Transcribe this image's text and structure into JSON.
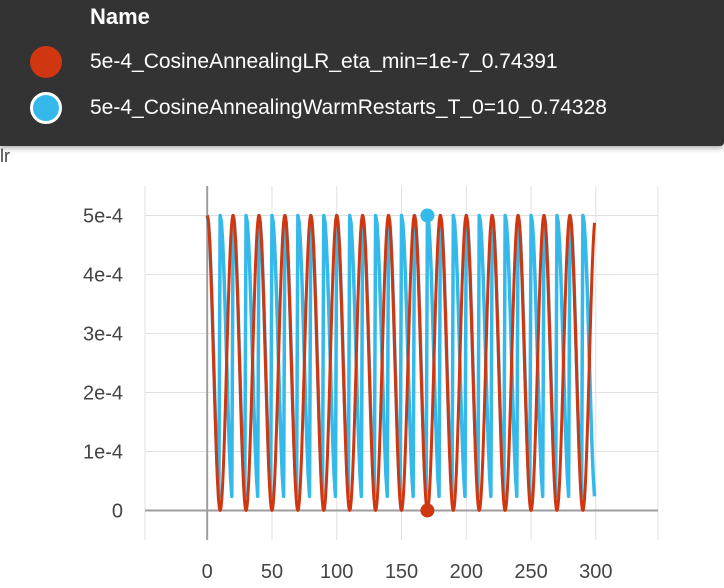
{
  "tooltip": {
    "header": "Name",
    "rows": [
      {
        "name": "5e-4_CosineAnnealingLR_eta_min=1e-7_0.74391",
        "color": "#d0360f"
      },
      {
        "name": "5e-4_CosineAnnealingWarmRestarts_T_0=10_0.74328",
        "color": "#35b9ea"
      }
    ]
  },
  "card_title_fragment": "lr",
  "chart_data": {
    "type": "line",
    "title": "",
    "xlabel": "",
    "ylabel": "",
    "xlim": [
      -48,
      348
    ],
    "ylim": [
      -5e-05,
      0.00055
    ],
    "x_ticks": [
      0,
      50,
      100,
      150,
      200,
      250,
      300
    ],
    "x_tick_labels": [
      "0",
      "50",
      "100",
      "150",
      "200",
      "250",
      "300"
    ],
    "y_ticks": [
      0,
      0.0001,
      0.0002,
      0.0003,
      0.0004,
      0.0005
    ],
    "y_tick_labels": [
      "0",
      "1e-4",
      "2e-4",
      "3e-4",
      "4e-4",
      "5e-4"
    ],
    "grid": true,
    "hover_x": 170,
    "series": [
      {
        "name": "5e-4_CosineAnnealingLR_eta_min=1e-7_0.74391",
        "color": "#d0360f",
        "shape": "cosine annealing, half-period 10 steps",
        "x_start": 0,
        "x_end": 299,
        "half_period": 10,
        "max": 0.0005,
        "min": 1e-07,
        "hover_value": 1e-07
      },
      {
        "name": "5e-4_CosineAnnealingWarmRestarts_T_0=10_0.74328",
        "color": "#35b9ea",
        "shape": "warm restarts every 10 steps",
        "x_start": 0,
        "x_end": 299,
        "period": 10,
        "max": 0.0005,
        "min": 1.2e-05,
        "hover_value": 0.0005
      }
    ]
  }
}
